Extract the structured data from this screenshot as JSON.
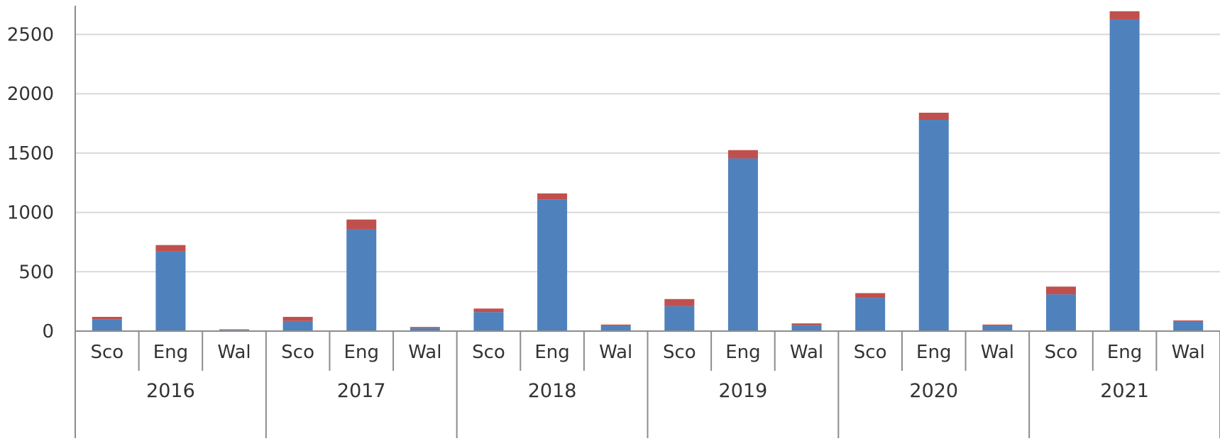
{
  "chart_data": {
    "type": "bar",
    "stacked": true,
    "groups": [
      "2016",
      "2017",
      "2018",
      "2019",
      "2020",
      "2021"
    ],
    "subcategories": [
      "Sco",
      "Eng",
      "Wal"
    ],
    "categories": [
      "2016 Sco",
      "2016 Eng",
      "2016 Wal",
      "2017 Sco",
      "2017 Eng",
      "2017 Wal",
      "2018 Sco",
      "2018 Eng",
      "2018 Wal",
      "2019 Sco",
      "2019 Eng",
      "2019 Wal",
      "2020 Sco",
      "2020 Eng",
      "2020 Wal",
      "2021 Sco",
      "2021 Eng",
      "2021 Wal"
    ],
    "series": [
      {
        "color": "#4f81bd",
        "values": [
          100,
          670,
          10,
          85,
          860,
          25,
          160,
          1110,
          45,
          210,
          1455,
          50,
          280,
          1780,
          45,
          310,
          2625,
          80
        ]
      },
      {
        "color": "#c0504d",
        "values": [
          20,
          55,
          5,
          35,
          80,
          10,
          30,
          50,
          10,
          60,
          70,
          15,
          40,
          60,
          10,
          65,
          70,
          10
        ]
      }
    ],
    "yticks": [
      0,
      500,
      1000,
      1500,
      2000,
      2500
    ],
    "ylim": [
      0,
      2700
    ],
    "grid": true,
    "legend": "none",
    "title": "",
    "xlabel": "",
    "ylabel": ""
  }
}
